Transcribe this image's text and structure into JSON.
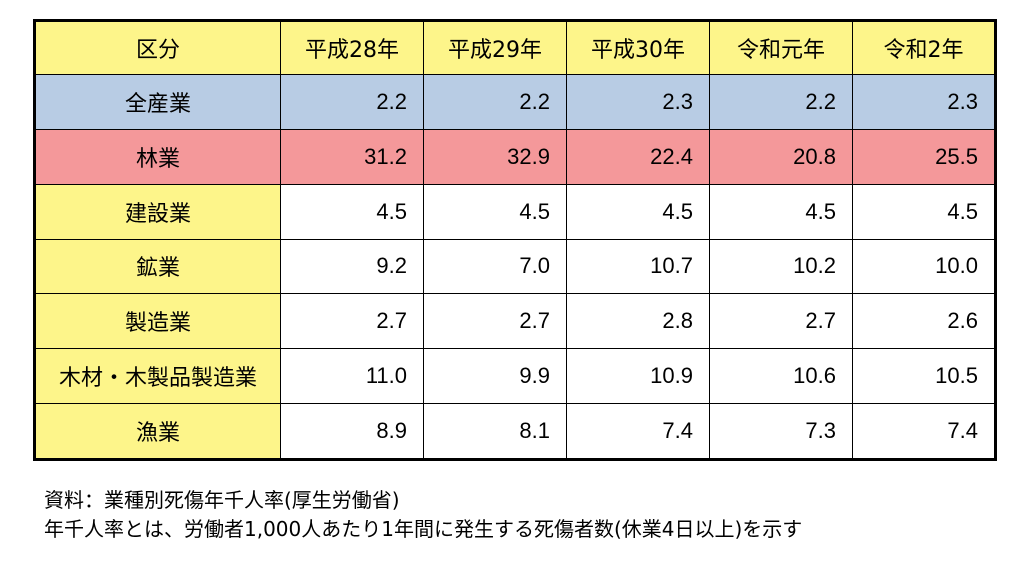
{
  "chart_data": {
    "type": "table",
    "header": {
      "category": "区分",
      "years": [
        "平成28年",
        "平成29年",
        "平成30年",
        "令和元年",
        "令和2年"
      ]
    },
    "rows": [
      {
        "label": "全産業",
        "values": [
          "2.2",
          "2.2",
          "2.3",
          "2.2",
          "2.3"
        ],
        "highlight": "#b8cce4"
      },
      {
        "label": "林業",
        "values": [
          "31.2",
          "32.9",
          "22.4",
          "20.8",
          "25.5"
        ],
        "highlight": "#f4989a"
      },
      {
        "label": "建設業",
        "values": [
          "4.5",
          "4.5",
          "4.5",
          "4.5",
          "4.5"
        ]
      },
      {
        "label": "鉱業",
        "values": [
          "9.2",
          "7.0",
          "10.7",
          "10.2",
          "10.0"
        ]
      },
      {
        "label": "製造業",
        "values": [
          "2.7",
          "2.7",
          "2.8",
          "2.7",
          "2.6"
        ]
      },
      {
        "label": "木材・木製品製造業",
        "values": [
          "11.0",
          "9.9",
          "10.9",
          "10.6",
          "10.5"
        ]
      },
      {
        "label": "漁業",
        "values": [
          "8.9",
          "8.1",
          "7.4",
          "7.3",
          "7.4"
        ]
      }
    ]
  },
  "notes": {
    "source": "資料：業種別死傷年千人率(厚生労働省)",
    "definition": "年千人率とは、労働者1,000人あたり1年間に発生する死傷者数(休業4日以上)を示す"
  },
  "colors": {
    "header_bg": "#fdf58a",
    "all_industry_bg": "#b8cce4",
    "forestry_bg": "#f4989a"
  }
}
